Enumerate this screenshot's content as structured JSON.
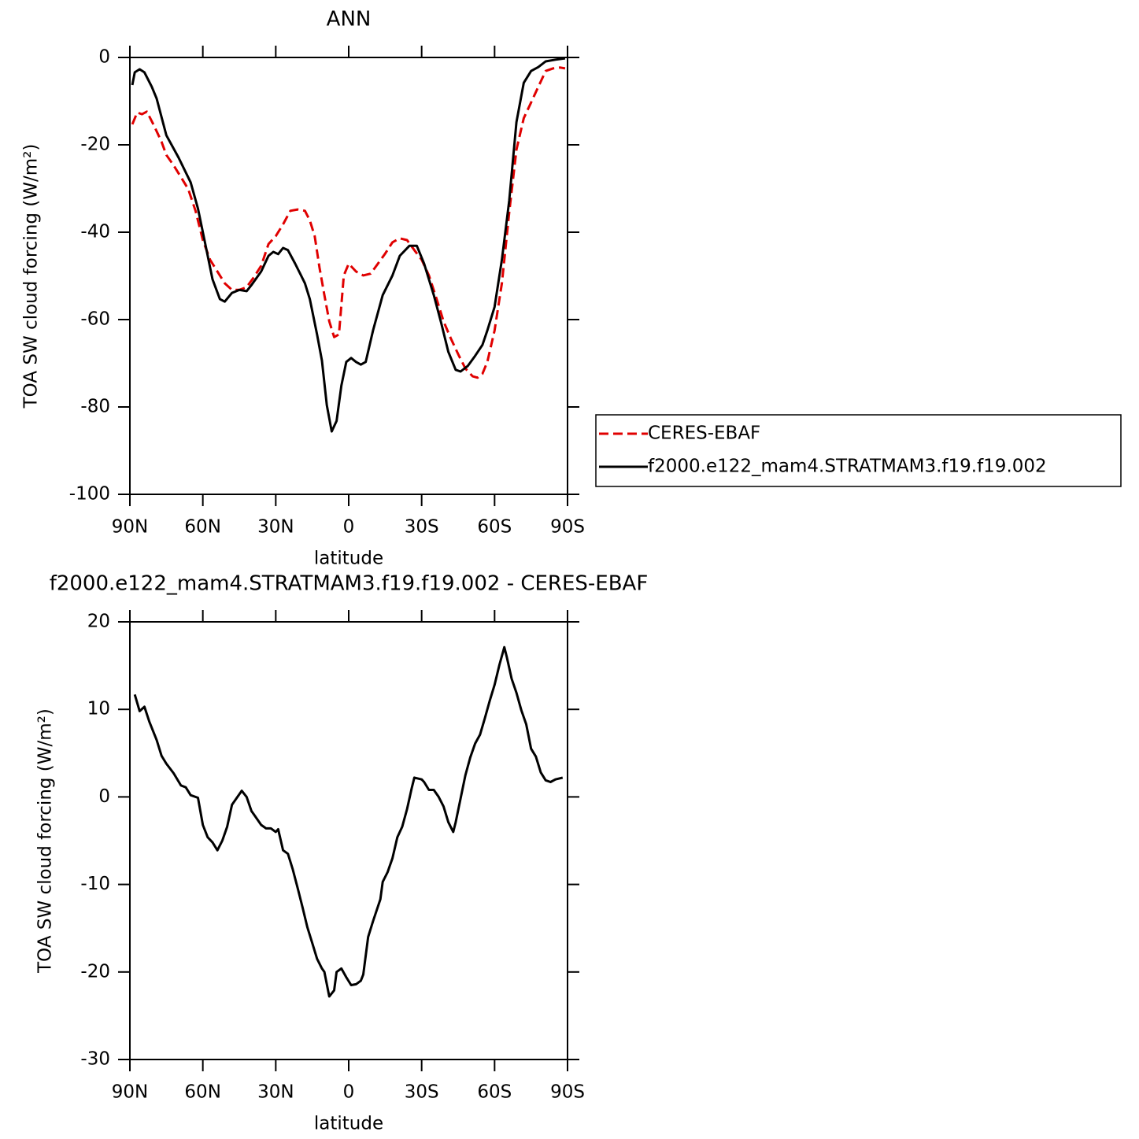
{
  "chart_data": [
    {
      "type": "line",
      "title": "ANN",
      "xlabel": "latitude",
      "ylabel": "TOA SW cloud forcing (W/m²)",
      "xlim": [
        90,
        -90
      ],
      "xticks": [
        {
          "value": 90,
          "label": "90N"
        },
        {
          "value": 60,
          "label": "60N"
        },
        {
          "value": 30,
          "label": "30N"
        },
        0,
        {
          "value": -30,
          "label": "30S"
        },
        {
          "value": -60,
          "label": "60S"
        },
        {
          "value": -90,
          "label": "90S"
        }
      ],
      "ylim": [
        -100,
        0
      ],
      "yticks": [
        0,
        -20,
        -40,
        -60,
        -80,
        -100
      ],
      "legend": "right",
      "series": [
        {
          "name": "CERES-EBAF",
          "color": "#e00000",
          "style": "dashed",
          "x": [
            89,
            87,
            85,
            83,
            80,
            77,
            75,
            72,
            69,
            66,
            63,
            60,
            57,
            54,
            51,
            48,
            45,
            42,
            39,
            36,
            33,
            30,
            27,
            24,
            21,
            18,
            16,
            14,
            12,
            10,
            8,
            6,
            4,
            2,
            0,
            -3,
            -6,
            -9,
            -12,
            -15,
            -18,
            -21,
            -24,
            -27,
            -30,
            -33,
            -36,
            -39,
            -42,
            -45,
            -48,
            -51,
            -53,
            -55,
            -57,
            -60,
            -63,
            -66,
            -69,
            -72,
            -75,
            -78,
            -81,
            -84,
            -87,
            -89
          ],
          "values": [
            -15.3,
            -12.6,
            -13,
            -12.4,
            -15.7,
            -19.3,
            -22.3,
            -24.7,
            -27.4,
            -30.1,
            -35.1,
            -41.8,
            -46.3,
            -49,
            -51.7,
            -53.2,
            -53.2,
            -52.6,
            -50.3,
            -47.7,
            -42.7,
            -40.9,
            -38.2,
            -35.1,
            -34.8,
            -35.1,
            -37.3,
            -40.9,
            -48.1,
            -54.4,
            -60.4,
            -64,
            -63.4,
            -49.9,
            -47.2,
            -49,
            -49.9,
            -49.5,
            -47.2,
            -44.9,
            -42.3,
            -41.4,
            -41.8,
            -44.1,
            -46.3,
            -49.9,
            -55,
            -60.4,
            -64.3,
            -67.9,
            -71.2,
            -73,
            -73.3,
            -72.4,
            -69.7,
            -62.5,
            -51.7,
            -35.5,
            -21.1,
            -13.9,
            -10.3,
            -6.7,
            -3.1,
            -2.5,
            -2.3,
            -2.5
          ]
        },
        {
          "name": "f2000.e122_mam4.STRATMAM3.f19.f19.002",
          "color": "#000000",
          "style": "solid",
          "x": [
            89,
            88,
            86,
            84,
            81,
            79,
            75,
            70,
            65,
            62,
            59,
            56,
            53,
            51,
            48,
            45,
            42,
            40,
            36,
            33,
            31,
            29,
            27,
            25,
            22,
            18,
            16,
            13,
            11,
            9,
            7,
            5,
            3,
            1,
            -1,
            -3,
            -5,
            -7,
            -10,
            -14,
            -18,
            -21,
            -25,
            -28,
            -31,
            -35,
            -38,
            -41,
            -44,
            -46,
            -49,
            -52,
            -55,
            -57,
            -60,
            -63,
            -66,
            -69,
            -72,
            -75,
            -78,
            -81,
            -85,
            -89
          ],
          "values": [
            -6.3,
            -3.4,
            -2.7,
            -3.4,
            -6.7,
            -9.4,
            -17.8,
            -22.9,
            -28.6,
            -34.6,
            -42.7,
            -50.8,
            -55.3,
            -55.9,
            -53.9,
            -53.2,
            -53.5,
            -52.1,
            -49,
            -45.4,
            -44.5,
            -45,
            -43.6,
            -44.1,
            -47.2,
            -51.7,
            -55.3,
            -63.4,
            -69.4,
            -79.6,
            -85.6,
            -83.2,
            -75.1,
            -69.7,
            -68.8,
            -69.7,
            -70.3,
            -69.7,
            -62.5,
            -54.4,
            -49.9,
            -45.4,
            -43.1,
            -43.1,
            -47.2,
            -54.4,
            -60.7,
            -67.4,
            -71.5,
            -71.9,
            -70.6,
            -68.3,
            -65.8,
            -62.5,
            -57.1,
            -46.3,
            -32.8,
            -14.8,
            -5.8,
            -3.1,
            -2.2,
            -0.9,
            -0.5,
            -0.2
          ]
        }
      ]
    },
    {
      "type": "line",
      "title": "f2000.e122_mam4.STRATMAM3.f19.f19.002 - CERES-EBAF",
      "xlabel": "latitude",
      "ylabel": "TOA SW cloud forcing (W/m²)",
      "xlim": [
        90,
        -90
      ],
      "xticks": [
        {
          "value": 90,
          "label": "90N"
        },
        {
          "value": 60,
          "label": "60N"
        },
        {
          "value": 30,
          "label": "30N"
        },
        0,
        {
          "value": -30,
          "label": "30S"
        },
        {
          "value": -60,
          "label": "60S"
        },
        {
          "value": -90,
          "label": "90S"
        }
      ],
      "ylim": [
        -30,
        20
      ],
      "yticks": [
        20,
        10,
        0,
        -10,
        -20,
        -30
      ],
      "color": "#000000",
      "x": [
        88,
        86,
        84,
        82,
        79,
        77,
        75,
        72,
        69,
        67,
        65,
        62,
        60,
        58,
        56,
        54,
        52,
        50,
        48,
        44,
        42,
        40,
        39,
        36,
        34,
        32,
        30,
        29,
        27,
        25,
        23,
        21,
        19,
        17,
        15,
        13,
        11,
        10,
        8,
        6,
        5,
        3,
        1,
        -1,
        -3,
        -5,
        -6,
        -8,
        -10,
        -13,
        -14,
        -16,
        -18,
        -20,
        -22,
        -24,
        -26,
        -27,
        -30,
        -31,
        -33,
        -35,
        -37,
        -39,
        -41,
        -43,
        -44,
        -46,
        -48,
        -50,
        -52,
        -54,
        -56,
        -58,
        -60,
        -62,
        -64,
        -65,
        -67,
        -69,
        -71,
        -73,
        -75,
        -77,
        -79,
        -81,
        -83,
        -85,
        -88
      ],
      "values": [
        11.7,
        9.8,
        10.3,
        8.6,
        6.5,
        4.7,
        3.8,
        2.7,
        1.3,
        1.1,
        0.2,
        -0.1,
        -3.2,
        -4.6,
        -5.2,
        -6.1,
        -5,
        -3.4,
        -0.9,
        0.7,
        0,
        -1.6,
        -2,
        -3.2,
        -3.6,
        -3.6,
        -4,
        -3.7,
        -6.1,
        -6.5,
        -8.3,
        -10.4,
        -12.6,
        -14.9,
        -16.7,
        -18.5,
        -19.6,
        -20,
        -22.8,
        -22.1,
        -20,
        -19.6,
        -20.6,
        -21.5,
        -21.4,
        -21,
        -20.3,
        -16,
        -14.2,
        -11.7,
        -9.7,
        -8.6,
        -7,
        -4.6,
        -3.4,
        -1.4,
        1.1,
        2.2,
        2,
        1.7,
        0.8,
        0.8,
        0,
        -1.1,
        -2.9,
        -4,
        -2.9,
        -0.2,
        2.5,
        4.5,
        6.1,
        7.1,
        9,
        11,
        12.8,
        15.1,
        17.1,
        16,
        13.5,
        11.9,
        9.9,
        8.3,
        5.5,
        4.6,
        2.8,
        1.9,
        1.7,
        2,
        2.2
      ]
    }
  ]
}
